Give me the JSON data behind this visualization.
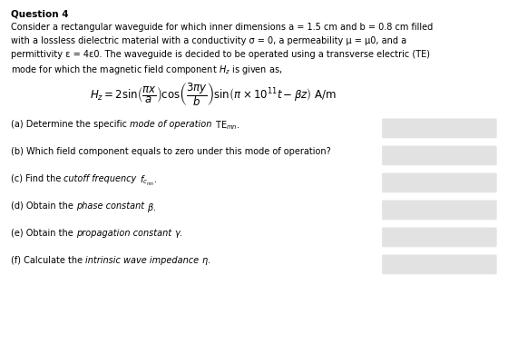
{
  "title": "Question 4",
  "para_lines": [
    "Consider a rectangular waveguide for which inner dimensions a = 1.5 cm and b = 0.8 cm filled",
    "with a lossless dielectric material with a conductivity σ = 0, a permeability μ = μ0, and a",
    "permittivity ε = 4ε0. The waveguide is decided to be operated using a transverse electric (TE)",
    "mode for which the magnetic field component $H_z$ is given as,"
  ],
  "equation": "$H_z = 2\\sin\\!\\left(\\dfrac{\\pi x}{a}\\right)\\cos\\!\\left(\\dfrac{3\\pi y}{b}\\right)\\sin\\!\\left(\\pi \\times 10^{11}t - \\beta z\\right)$ A/m",
  "questions_pre": [
    "(a) Determine the specific ",
    "(b) Which field component equals to zero under this mode of operation?",
    "(c) Find the ",
    "(d) Obtain the ",
    "(e) Obtain the ",
    "(f) Calculate the "
  ],
  "questions_italic": [
    "mode of operation",
    "",
    "cutoff frequency",
    "phase constant",
    "propagation constant",
    "intrinsic wave impedance"
  ],
  "questions_post": [
    " TE$_{mn}$.",
    "",
    " $f_{c_{mn}}$.",
    " $\\beta$.",
    " $\\gamma$.",
    " $\\eta$."
  ],
  "bg_color": "#ffffff",
  "text_color": "#000000",
  "box_color": "#d0d0d0",
  "title_fontsize": 7.5,
  "body_fontsize": 7.0,
  "eq_fontsize": 8.5,
  "q_fontsize": 7.0,
  "fig_width": 5.6,
  "fig_height": 3.79,
  "dpi": 100
}
